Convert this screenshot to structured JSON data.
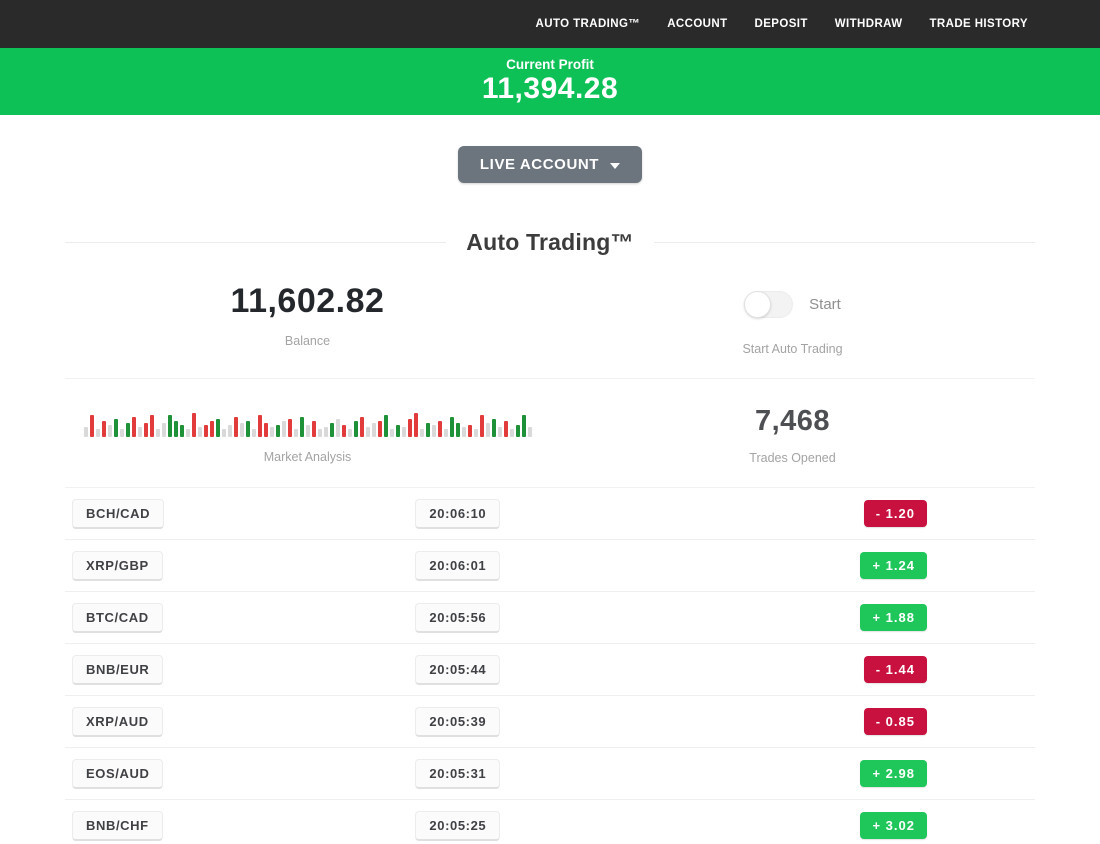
{
  "nav": {
    "items": [
      {
        "label": "AUTO TRADING™"
      },
      {
        "label": "ACCOUNT"
      },
      {
        "label": "DEPOSIT"
      },
      {
        "label": "WITHDRAW"
      },
      {
        "label": "TRADE HISTORY"
      }
    ]
  },
  "banner": {
    "label": "Current Profit",
    "value": "11,394.28"
  },
  "account_selector": {
    "label": "LIVE ACCOUNT"
  },
  "section": {
    "title": "Auto Trading™"
  },
  "stats": {
    "balance": {
      "value": "11,602.82",
      "label": "Balance"
    },
    "auto_trading": {
      "toggle_label": "Start",
      "toggle_state": "off",
      "label": "Start Auto Trading"
    },
    "market": {
      "label": "Market Analysis"
    },
    "trades": {
      "value": "7,468",
      "label": "Trades Opened"
    }
  },
  "chart_data": {
    "type": "bar",
    "title": "Market Analysis",
    "description": "Decorative strip of mini candlestick-style bars, bottom-aligned, mixing red, green and neutral gray bars of varying heights (px).",
    "colors": {
      "r": "#e23b3b",
      "g": "#1f9239",
      "n": "#d9d9d9"
    },
    "bars": [
      "n10",
      "r22",
      "n8",
      "r16",
      "n12",
      "g18",
      "n8",
      "g14",
      "r20",
      "n10",
      "r14",
      "r22",
      "n8",
      "n14",
      "g22",
      "g16",
      "g12",
      "n8",
      "r24",
      "n10",
      "r12",
      "r16",
      "g18",
      "n8",
      "n12",
      "r20",
      "n14",
      "g16",
      "n8",
      "r22",
      "r14",
      "n10",
      "g12",
      "n16",
      "r18",
      "n8",
      "g20",
      "n12",
      "r16",
      "n8",
      "n10",
      "g14",
      "n18",
      "r12",
      "n8",
      "g16",
      "r20",
      "n10",
      "n14",
      "r16",
      "g22",
      "n8",
      "g12",
      "n10",
      "r18",
      "r24",
      "n8",
      "g14",
      "n12",
      "r16",
      "n8",
      "g20",
      "g14",
      "n10",
      "r12",
      "n8",
      "r22",
      "n14",
      "g18",
      "n10",
      "r16",
      "n8",
      "g12",
      "g22",
      "n10"
    ]
  },
  "trades_table": {
    "rows": [
      {
        "pair": "BCH/CAD",
        "time": "20:06:10",
        "result": "- 1.20",
        "type": "negative"
      },
      {
        "pair": "XRP/GBP",
        "time": "20:06:01",
        "result": "+ 1.24",
        "type": "positive"
      },
      {
        "pair": "BTC/CAD",
        "time": "20:05:56",
        "result": "+ 1.88",
        "type": "positive"
      },
      {
        "pair": "BNB/EUR",
        "time": "20:05:44",
        "result": "- 1.44",
        "type": "negative"
      },
      {
        "pair": "XRP/AUD",
        "time": "20:05:39",
        "result": "- 0.85",
        "type": "negative"
      },
      {
        "pair": "EOS/AUD",
        "time": "20:05:31",
        "result": "+ 2.98",
        "type": "positive"
      },
      {
        "pair": "BNB/CHF",
        "time": "20:05:25",
        "result": "+ 3.02",
        "type": "positive"
      }
    ]
  },
  "colors": {
    "nav_bg": "#2a2a2a",
    "banner_green": "#0dc157",
    "badge_green": "#1fc75b",
    "badge_red": "#c9113f",
    "button_gray": "#6c757d"
  }
}
